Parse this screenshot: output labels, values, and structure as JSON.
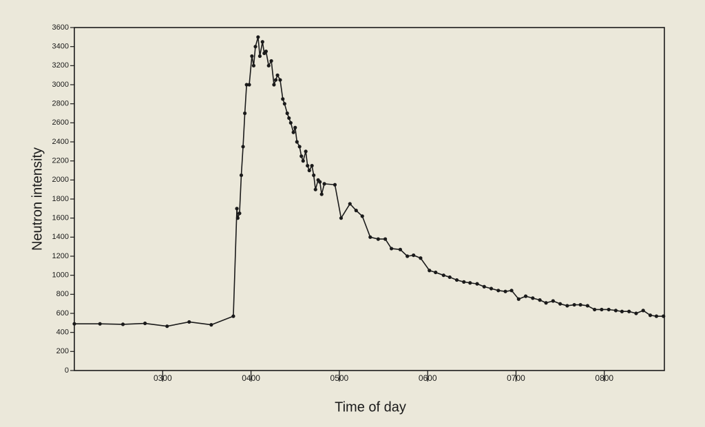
{
  "chart_data": {
    "type": "line",
    "x_label": "Time of day",
    "y_label": "Neutron intensity",
    "x": [
      2.0,
      2.29,
      2.55,
      2.8,
      3.05,
      3.3,
      3.55,
      3.8,
      3.84,
      3.85,
      3.87,
      3.89,
      3.91,
      3.93,
      3.95,
      3.98,
      4.01,
      4.03,
      4.05,
      4.08,
      4.1,
      4.13,
      4.15,
      4.17,
      4.2,
      4.23,
      4.26,
      4.28,
      4.3,
      4.33,
      4.36,
      4.38,
      4.41,
      4.43,
      4.45,
      4.48,
      4.5,
      4.52,
      4.55,
      4.57,
      4.59,
      4.62,
      4.64,
      4.66,
      4.69,
      4.71,
      4.73,
      4.76,
      4.78,
      4.8,
      4.83,
      4.95,
      5.02,
      5.12,
      5.19,
      5.26,
      5.35,
      5.44,
      5.52,
      5.59,
      5.69,
      5.77,
      5.84,
      5.92,
      6.02,
      6.09,
      6.18,
      6.25,
      6.33,
      6.41,
      6.48,
      6.56,
      6.64,
      6.72,
      6.8,
      6.88,
      6.95,
      7.03,
      7.11,
      7.19,
      7.27,
      7.34,
      7.42,
      7.5,
      7.58,
      7.66,
      7.73,
      7.81,
      7.89,
      7.97,
      8.05,
      8.13,
      8.2,
      8.28,
      8.36,
      8.44,
      8.52,
      8.59,
      8.67
    ],
    "values": [
      490,
      490,
      485,
      495,
      465,
      510,
      480,
      570,
      1700,
      1600,
      1650,
      2050,
      2350,
      2700,
      3000,
      3000,
      3300,
      3200,
      3400,
      3500,
      3300,
      3450,
      3330,
      3350,
      3200,
      3250,
      3000,
      3050,
      3100,
      3050,
      2850,
      2800,
      2700,
      2650,
      2600,
      2500,
      2550,
      2400,
      2350,
      2250,
      2200,
      2300,
      2150,
      2100,
      2150,
      2050,
      1900,
      2000,
      1980,
      1850,
      1960,
      1950,
      1600,
      1750,
      1680,
      1620,
      1400,
      1380,
      1380,
      1280,
      1270,
      1200,
      1210,
      1180,
      1050,
      1030,
      1000,
      980,
      950,
      930,
      920,
      910,
      880,
      860,
      840,
      830,
      840,
      750,
      780,
      760,
      740,
      710,
      730,
      700,
      680,
      690,
      690,
      680,
      640,
      640,
      640,
      630,
      620,
      620,
      600,
      630,
      580,
      570,
      570
    ],
    "color": "#1a1a1a",
    "xlim": [
      2,
      8.68
    ],
    "xticks": [
      {
        "value": 3,
        "label": "0300"
      },
      {
        "value": 4,
        "label": "0400"
      },
      {
        "value": 5,
        "label": "0500"
      },
      {
        "value": 6,
        "label": "0600"
      },
      {
        "value": 7,
        "label": "0700"
      },
      {
        "value": 8,
        "label": "0800"
      }
    ],
    "ylim": [
      0,
      3600
    ],
    "yticks": [
      0,
      200,
      400,
      600,
      800,
      1000,
      1200,
      1400,
      1600,
      1800,
      2000,
      2200,
      2400,
      2600,
      2800,
      3000,
      3200,
      3400,
      3600
    ],
    "grid": false
  }
}
